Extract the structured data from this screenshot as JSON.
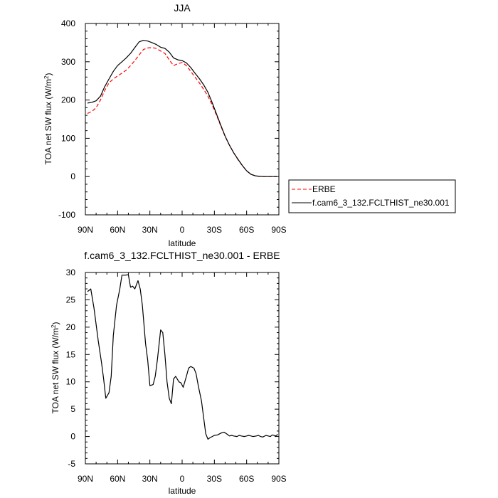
{
  "chart_data": [
    {
      "type": "line",
      "title": "JJA",
      "xlabel": "latitude",
      "ylabel": "TOA net SW flux (W/m²)",
      "ylabel_main": "TOA net SW flux (W/m",
      "ylabel_sup": "2",
      "ylabel_tail": ")",
      "xlim": [
        90,
        -90
      ],
      "ylim": [
        -100,
        400
      ],
      "xticks": [
        90,
        60,
        30,
        0,
        -30,
        -60,
        -90
      ],
      "xtick_labels": [
        "90N",
        "60N",
        "30N",
        "0",
        "30S",
        "60S",
        "90S"
      ],
      "yticks": [
        -100,
        0,
        100,
        200,
        300,
        400
      ],
      "ytick_labels": [
        "-100",
        "0",
        "100",
        "200",
        "300",
        "400"
      ],
      "legend_placement": "right, outside plot",
      "series": [
        {
          "name": "ERBE",
          "color": "#ff0000",
          "dash": "dashed",
          "x": [
            88,
            84,
            80,
            76,
            72,
            68,
            64,
            60,
            56,
            52,
            48,
            44,
            40,
            36,
            32,
            28,
            24,
            20,
            16,
            12,
            8,
            4,
            0,
            -4,
            -8,
            -12,
            -16,
            -20,
            -24,
            -28,
            -32,
            -36,
            -40,
            -44,
            -48,
            -52,
            -56,
            -60,
            -64,
            -68,
            -72,
            -76,
            -80,
            -84,
            -88
          ],
          "y": [
            165,
            170,
            180,
            200,
            225,
            245,
            255,
            263,
            270,
            278,
            290,
            303,
            318,
            332,
            336,
            337,
            335,
            328,
            322,
            305,
            290,
            295,
            298,
            290,
            275,
            260,
            245,
            228,
            210,
            187,
            160,
            132,
            105,
            82,
            62,
            44,
            29,
            15,
            6,
            2,
            0.5,
            0,
            0,
            0,
            0
          ]
        },
        {
          "name": "f.cam6_3_132.FCLTHIST_ne30.001",
          "color": "#000000",
          "dash": "solid",
          "x": [
            88,
            84,
            80,
            76,
            72,
            68,
            64,
            60,
            56,
            52,
            48,
            44,
            40,
            36,
            32,
            28,
            24,
            20,
            16,
            12,
            8,
            4,
            0,
            -4,
            -8,
            -12,
            -16,
            -20,
            -24,
            -28,
            -32,
            -36,
            -40,
            -44,
            -48,
            -52,
            -56,
            -60,
            -64,
            -68,
            -72,
            -76,
            -80,
            -84,
            -88
          ],
          "y": [
            192,
            194,
            198,
            210,
            235,
            255,
            275,
            290,
            300,
            310,
            322,
            337,
            352,
            356,
            354,
            350,
            345,
            338,
            335,
            325,
            310,
            305,
            303,
            297,
            285,
            270,
            256,
            240,
            220,
            193,
            163,
            134,
            106,
            82,
            62,
            45,
            29,
            15,
            6,
            2,
            0.5,
            0,
            0,
            0,
            0
          ]
        }
      ]
    },
    {
      "type": "line",
      "title": "f.cam6_3_132.FCLTHIST_ne30.001 - ERBE",
      "xlabel": "latitude",
      "ylabel": "TOA net SW flux (W/m²)",
      "ylabel_main": "TOA net SW flux (W/m",
      "ylabel_sup": "2",
      "ylabel_tail": ")",
      "xlim": [
        90,
        -90
      ],
      "ylim": [
        -5,
        30
      ],
      "xticks": [
        90,
        60,
        30,
        0,
        -30,
        -60,
        -90
      ],
      "xtick_labels": [
        "90N",
        "60N",
        "30N",
        "0",
        "30S",
        "60S",
        "90S"
      ],
      "yticks": [
        -5,
        0,
        5,
        10,
        15,
        20,
        25,
        30
      ],
      "ytick_labels": [
        "-5",
        "0",
        "5",
        "10",
        "15",
        "20",
        "25",
        "30"
      ],
      "series": [
        {
          "color": "#000000",
          "dash": "solid",
          "x": [
            88,
            85,
            82,
            80,
            78,
            75,
            73,
            71,
            68,
            66,
            64,
            61,
            58,
            56,
            53,
            50,
            48,
            46,
            44,
            41,
            39,
            37,
            34,
            32,
            30,
            27,
            25,
            23,
            20,
            18,
            16,
            14,
            12,
            10,
            8,
            6,
            3,
            1,
            -1,
            -4,
            -6,
            -8,
            -11,
            -13,
            -15,
            -18,
            -20,
            -22,
            -24,
            -26,
            -28,
            -30,
            -33,
            -35,
            -37,
            -39,
            -42,
            -44,
            -46,
            -48,
            -51,
            -53,
            -55,
            -58,
            -60,
            -62,
            -64,
            -66,
            -69,
            -71,
            -73,
            -75,
            -78,
            -80,
            -82,
            -84,
            -87,
            -89
          ],
          "y": [
            26.5,
            27,
            23.5,
            20.5,
            17.5,
            13.5,
            10.5,
            7,
            8,
            11,
            18.5,
            24,
            27,
            29.5,
            29.5,
            29.6,
            27.3,
            27.5,
            27,
            28.5,
            27,
            24,
            17,
            14,
            9.3,
            9.5,
            11,
            14,
            19.5,
            19,
            15,
            10,
            7,
            6,
            10.5,
            11,
            10,
            9.8,
            9,
            11,
            12.5,
            12.8,
            12.5,
            11.5,
            9.3,
            6.5,
            3.5,
            0.5,
            -0.5,
            -0.2,
            0,
            0.2,
            0.3,
            0.5,
            0.7,
            0.8,
            0.4,
            0.1,
            0.2,
            0.1,
            0,
            0.2,
            0.1,
            0,
            0.1,
            0.2,
            0.1,
            0,
            0.1,
            0.2,
            0,
            -0.1,
            0.2,
            0.1,
            0,
            0.3,
            0.1,
            0.4
          ]
        }
      ]
    }
  ]
}
